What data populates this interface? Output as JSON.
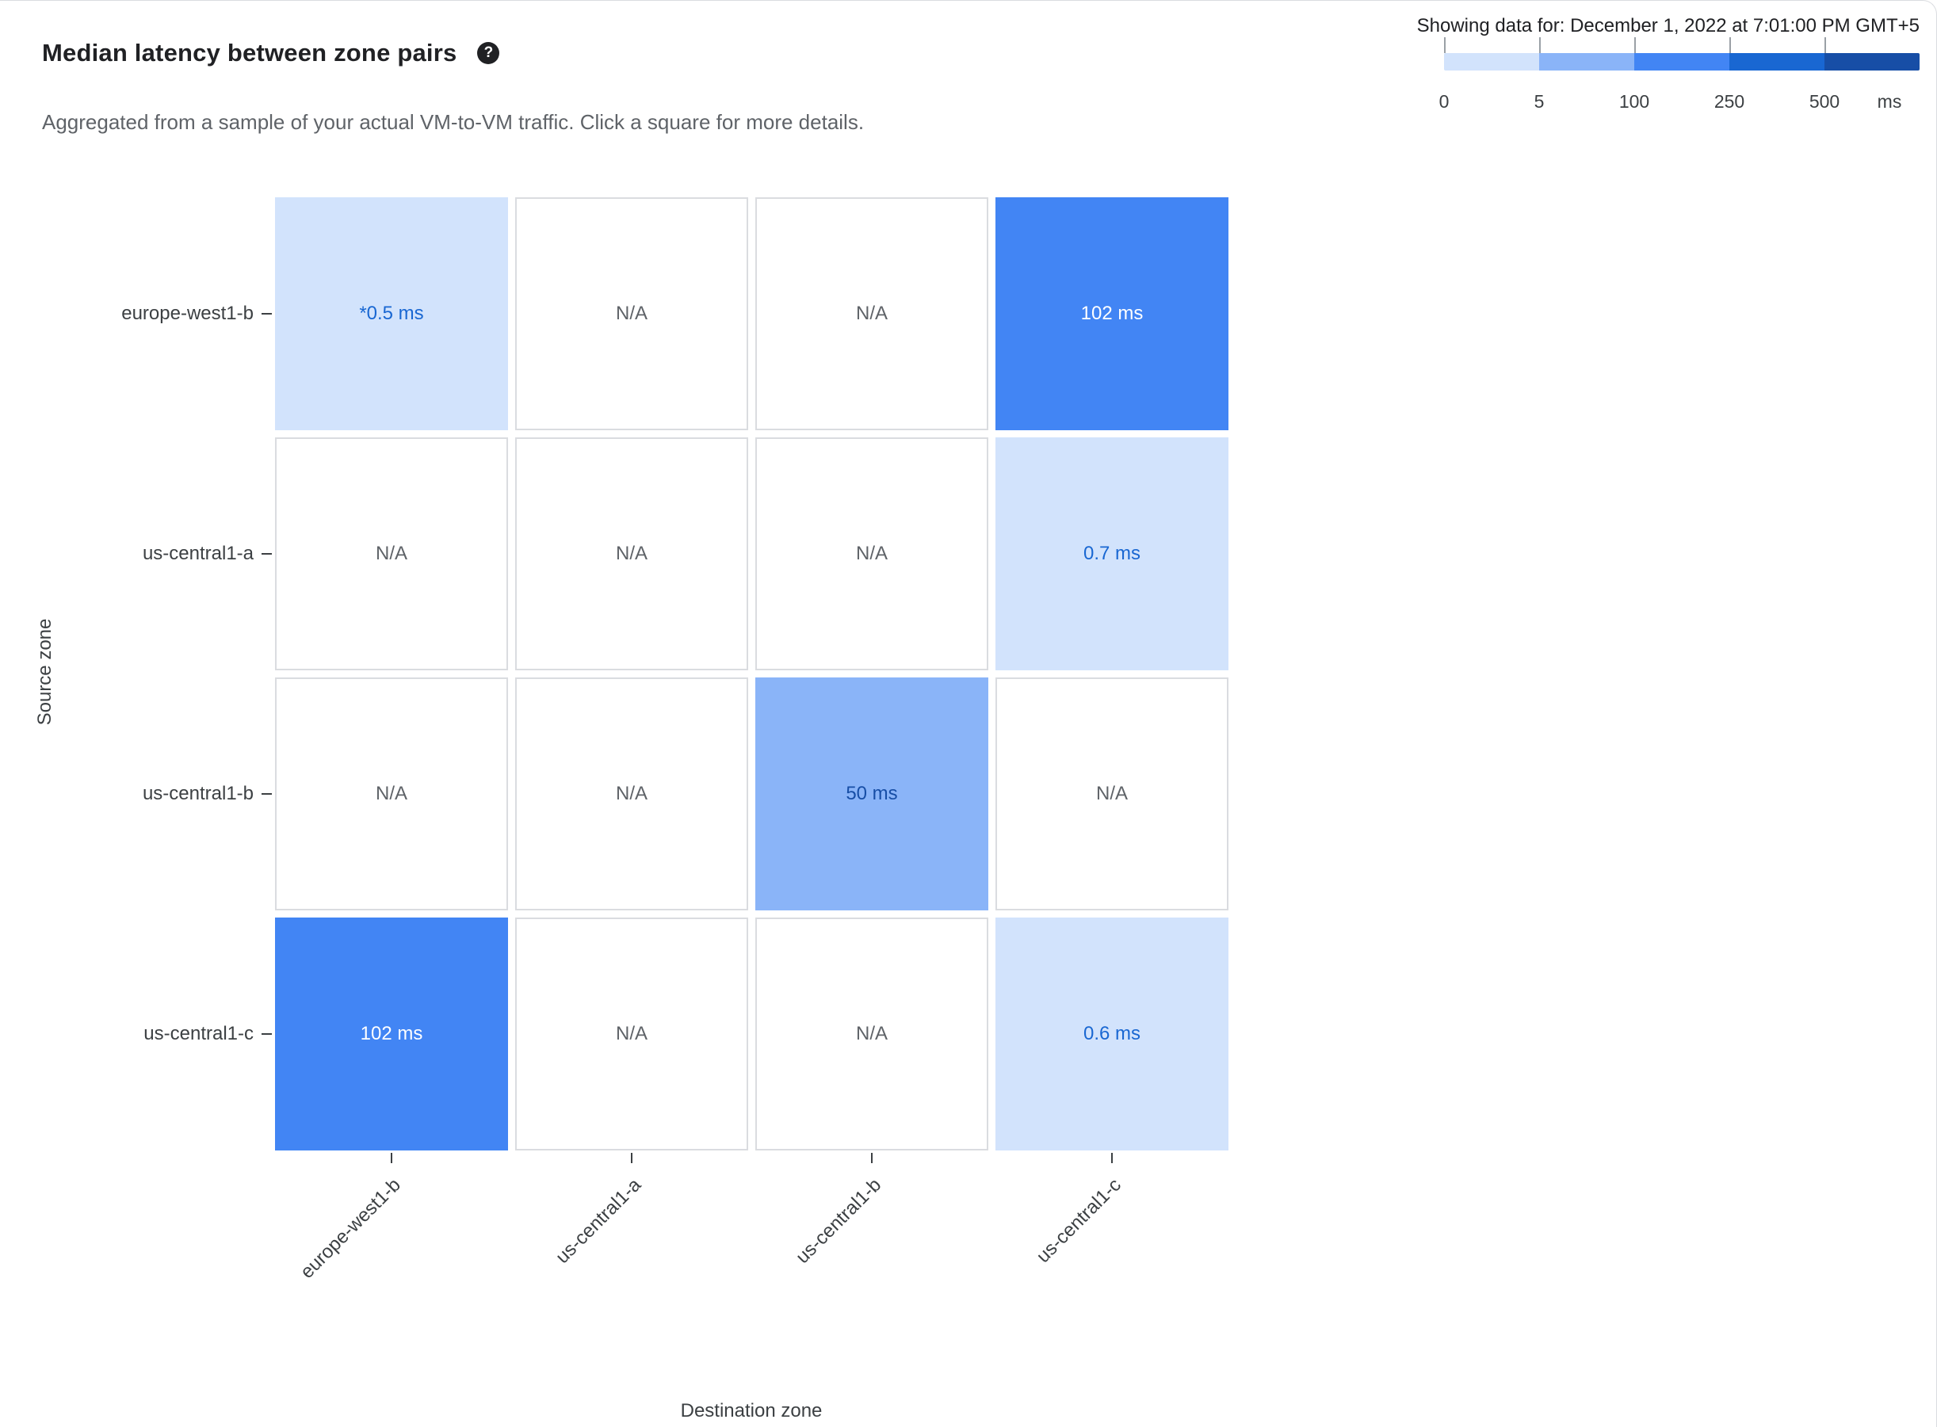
{
  "header": {
    "title": "Median latency between zone pairs",
    "help_icon": "?",
    "subtitle": "Aggregated from a sample of your actual VM-to-VM traffic. Click a square for more details."
  },
  "legend": {
    "showing_label": "Showing data for: December 1, 2022 at 7:01:00 PM GMT+5",
    "unit": "ms",
    "segments": [
      {
        "color": "#d2e3fc",
        "tick": "0"
      },
      {
        "color": "#8ab4f8",
        "tick": "5"
      },
      {
        "color": "#4285f4",
        "tick": "100"
      },
      {
        "color": "#1967d2",
        "tick": "250"
      },
      {
        "color": "#174ea6",
        "tick": "500"
      }
    ]
  },
  "chart_data": {
    "type": "heatmap",
    "title": "Median latency between zone pairs",
    "xlabel": "Destination zone",
    "ylabel": "Source zone",
    "rows": [
      "europe-west1-b",
      "us-central1-a",
      "us-central1-b",
      "us-central1-c"
    ],
    "columns": [
      "europe-west1-b",
      "us-central1-a",
      "us-central1-b",
      "us-central1-c"
    ],
    "values_ms": [
      [
        0.5,
        null,
        null,
        102
      ],
      [
        null,
        null,
        null,
        0.7
      ],
      [
        null,
        null,
        50,
        null
      ],
      [
        102,
        null,
        null,
        0.6
      ]
    ],
    "cells": [
      [
        {
          "label": "*0.5 ms",
          "bg": "#d2e3fc",
          "fg": "#1967d2"
        },
        {
          "label": "N/A",
          "bg": "#ffffff",
          "fg": "#5f6368"
        },
        {
          "label": "N/A",
          "bg": "#ffffff",
          "fg": "#5f6368"
        },
        {
          "label": "102 ms",
          "bg": "#4285f4",
          "fg": "#ffffff"
        }
      ],
      [
        {
          "label": "N/A",
          "bg": "#ffffff",
          "fg": "#5f6368"
        },
        {
          "label": "N/A",
          "bg": "#ffffff",
          "fg": "#5f6368"
        },
        {
          "label": "N/A",
          "bg": "#ffffff",
          "fg": "#5f6368"
        },
        {
          "label": "0.7 ms",
          "bg": "#d2e3fc",
          "fg": "#1967d2"
        }
      ],
      [
        {
          "label": "N/A",
          "bg": "#ffffff",
          "fg": "#5f6368"
        },
        {
          "label": "N/A",
          "bg": "#ffffff",
          "fg": "#5f6368"
        },
        {
          "label": "50 ms",
          "bg": "#8ab4f8",
          "fg": "#174ea6"
        },
        {
          "label": "N/A",
          "bg": "#ffffff",
          "fg": "#5f6368"
        }
      ],
      [
        {
          "label": "102 ms",
          "bg": "#4285f4",
          "fg": "#ffffff"
        },
        {
          "label": "N/A",
          "bg": "#ffffff",
          "fg": "#5f6368"
        },
        {
          "label": "N/A",
          "bg": "#ffffff",
          "fg": "#5f6368"
        },
        {
          "label": "0.6 ms",
          "bg": "#d2e3fc",
          "fg": "#1967d2"
        }
      ]
    ],
    "color_scale": {
      "ticks": [
        0,
        5,
        100,
        250,
        500
      ],
      "unit": "ms",
      "colors": [
        "#d2e3fc",
        "#8ab4f8",
        "#4285f4",
        "#1967d2",
        "#174ea6"
      ]
    }
  }
}
